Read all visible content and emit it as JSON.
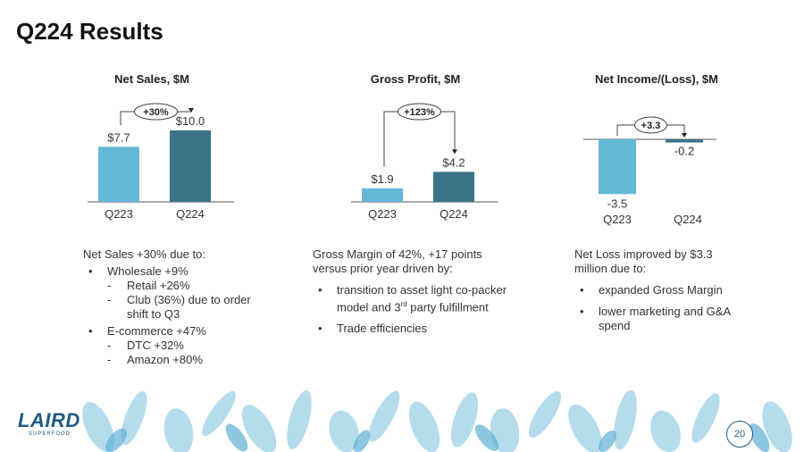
{
  "slide": {
    "title": "Q224 Results",
    "page_number": "20"
  },
  "colors": {
    "q223": "#64b8d6",
    "q224": "#3b7489",
    "text": "#333333",
    "logo": "#1f5a84",
    "foliage": "#a9d7ea"
  },
  "logo": {
    "text": "LAIRD",
    "subtext": "SUPERFOOD"
  },
  "chart_data": [
    {
      "type": "bar",
      "title": "Net Sales, $M",
      "categories": [
        "Q223",
        "Q224"
      ],
      "values": [
        7.7,
        10.0
      ],
      "value_labels": [
        "$7.7",
        "$10.0"
      ],
      "change_label": "+30%"
    },
    {
      "type": "bar",
      "title": "Gross Profit, $M",
      "categories": [
        "Q223",
        "Q224"
      ],
      "values": [
        1.9,
        4.2
      ],
      "value_labels": [
        "$1.9",
        "$4.2"
      ],
      "change_label": "+123%"
    },
    {
      "type": "bar",
      "title": "Net Income/(Loss), $M",
      "categories": [
        "Q223",
        "Q224"
      ],
      "values": [
        -3.5,
        -0.2
      ],
      "value_labels": [
        "-3.5",
        "-0.2"
      ],
      "change_label": "+3.3"
    }
  ],
  "columns": [
    {
      "intro": [
        "Net Sales +30% due to:"
      ],
      "bullets": [
        {
          "text": "Wholesale +9%",
          "subs": [
            "Retail +26%",
            "Club (36%) due to order shift to Q3"
          ]
        },
        {
          "text": "E-commerce +47%",
          "subs": [
            "DTC +32%",
            "Amazon +80%"
          ]
        }
      ]
    },
    {
      "intro": [
        "Gross Margin of 42%, +17 points",
        "versus prior year driven by:"
      ],
      "bullets": [
        {
          "text": "transition to asset light co-packer model and 3rd party fulfillment",
          "subs": []
        },
        {
          "text": "Trade efficiencies",
          "subs": []
        }
      ]
    },
    {
      "intro": [
        "Net Loss improved by $3.3",
        "million  due to:"
      ],
      "bullets": [
        {
          "text": "expanded Gross Margin",
          "subs": []
        },
        {
          "text": "lower marketing and G&A spend",
          "subs": []
        }
      ]
    }
  ]
}
